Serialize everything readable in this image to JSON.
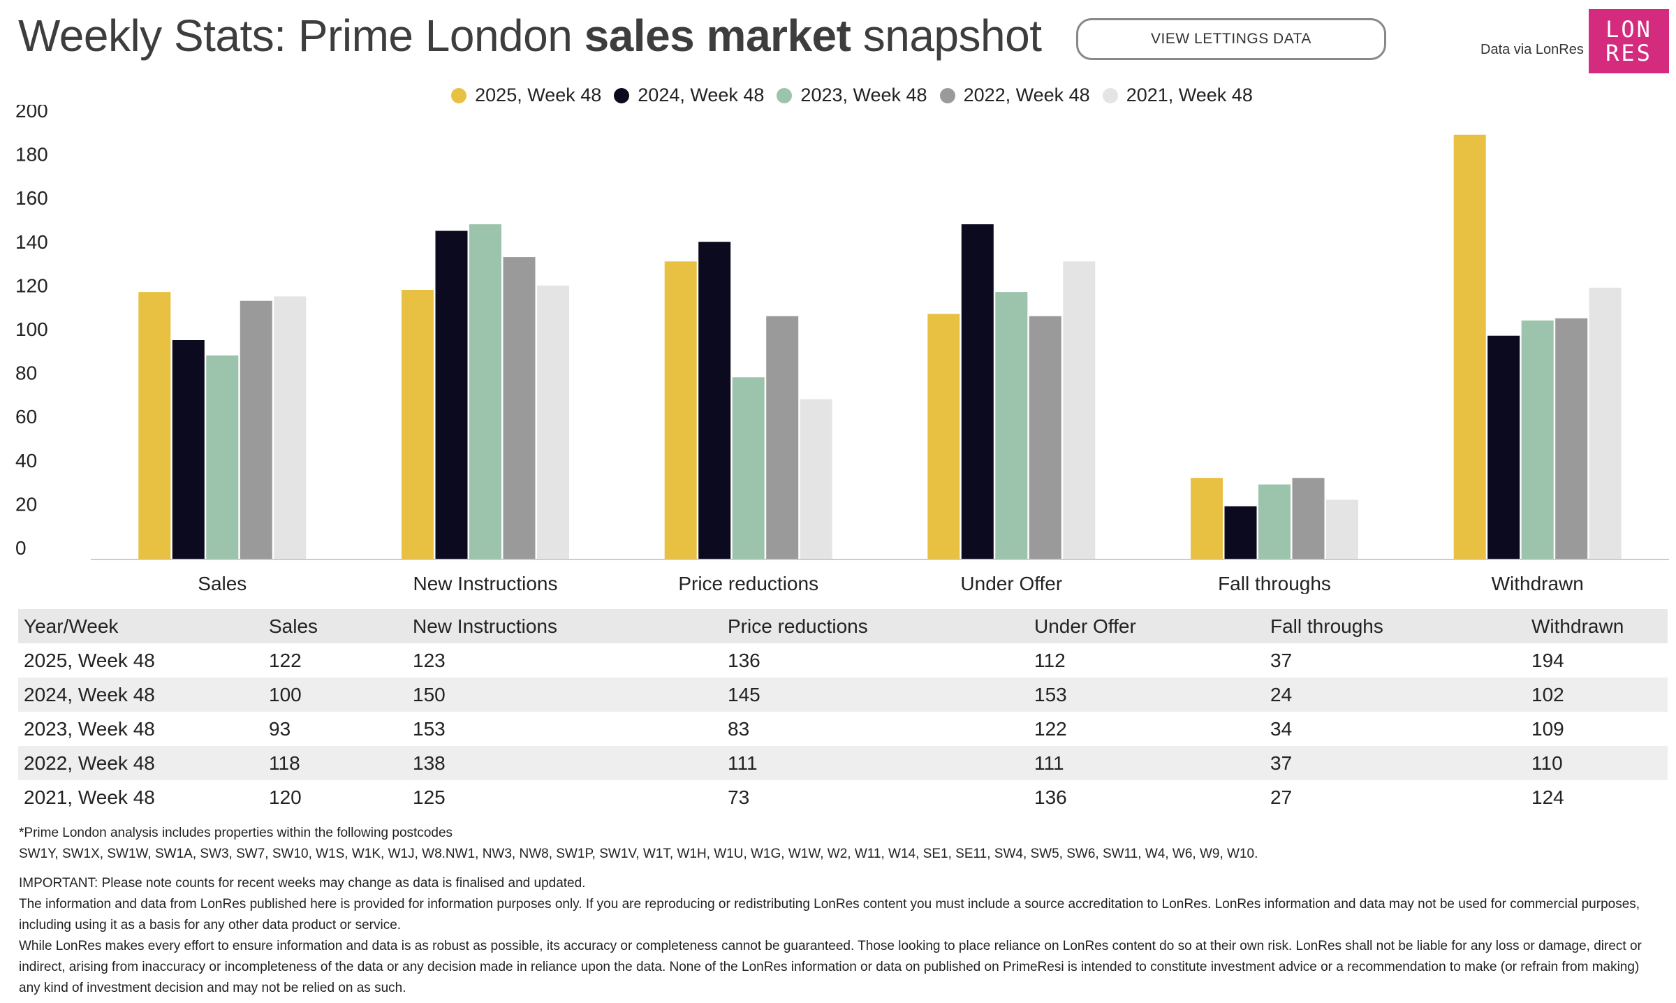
{
  "header": {
    "title_pre": "Weekly Stats: Prime London ",
    "title_bold": "sales market",
    "title_post": " snapshot",
    "lettings_button": "VIEW LETTINGS DATA",
    "data_via": "Data via LonRes",
    "logo_line1": "LON",
    "logo_line2": "RES"
  },
  "chart_data": {
    "type": "bar",
    "categories": [
      "Sales",
      "New Instructions",
      "Price reductions",
      "Under Offer",
      "Fall throughs",
      "Withdrawn"
    ],
    "series": [
      {
        "name": "2025, Week 48",
        "color": "#e8c042",
        "values": [
          122,
          123,
          136,
          112,
          37,
          194
        ]
      },
      {
        "name": "2024, Week 48",
        "color": "#0b0a1e",
        "values": [
          100,
          150,
          145,
          153,
          24,
          102
        ]
      },
      {
        "name": "2023, Week 48",
        "color": "#9cc3ab",
        "values": [
          93,
          153,
          83,
          122,
          34,
          109
        ]
      },
      {
        "name": "2022, Week 48",
        "color": "#9a9a9a",
        "values": [
          118,
          138,
          111,
          111,
          37,
          110
        ]
      },
      {
        "name": "2021, Week 48",
        "color": "#e4e4e4",
        "values": [
          120,
          125,
          73,
          136,
          27,
          124
        ]
      }
    ],
    "yticks": [
      0,
      20,
      40,
      60,
      80,
      100,
      120,
      140,
      160,
      180,
      200
    ],
    "ylim": [
      0,
      200
    ],
    "legend_position": "top-center",
    "grid": false
  },
  "table": {
    "headers": [
      "Year/Week",
      "Sales",
      "New Instructions",
      "Price reductions",
      "Under Offer",
      "Fall throughs",
      "Withdrawn"
    ],
    "rows": [
      [
        "2025, Week 48",
        "122",
        "123",
        "136",
        "112",
        "37",
        "194"
      ],
      [
        "2024, Week 48",
        "100",
        "150",
        "145",
        "153",
        "24",
        "102"
      ],
      [
        "2023, Week 48",
        "93",
        "153",
        "83",
        "122",
        "34",
        "109"
      ],
      [
        "2022, Week 48",
        "118",
        "138",
        "111",
        "111",
        "37",
        "110"
      ],
      [
        "2021, Week 48",
        "120",
        "125",
        "73",
        "136",
        "27",
        "124"
      ]
    ]
  },
  "footnotes": {
    "postcodes_intro": "*Prime London analysis includes properties within the following postcodes",
    "postcodes": "SW1Y, SW1X, SW1W, SW1A, SW3, SW7, SW10, W1S, W1K, W1J, W8.NW1, NW3, NW8, SW1P, SW1V, W1T, W1H, W1U, W1G, W1W, W2, W11, W14, SE1, SE11, SW4, SW5, SW6, SW11, W4, W6, W9, W10.",
    "important": "IMPORTANT: Please note counts for recent weeks may change as data is finalised and updated.",
    "info": "The information and data from LonRes published here is provided for information purposes only. If you are reproducing or redistributing LonRes content you must include a source accreditation to LonRes. LonRes information and data may not be used for commercial purposes, including using it as a basis for any other data product or service.",
    "disclaimer": "While LonRes makes every effort to ensure information and data is as robust as possible, its accuracy or completeness cannot be guaranteed. Those looking to place reliance on LonRes content do so at their own risk. LonRes shall not be liable for any loss or damage, direct or indirect, arising from inaccuracy or incompleteness of the data or any decision made in reliance upon the data. None of the LonRes information or data on published on PrimeResi is intended to constitute investment advice or a recommendation to make (or refrain from making) any kind of investment decision and may not be relied on as such."
  }
}
